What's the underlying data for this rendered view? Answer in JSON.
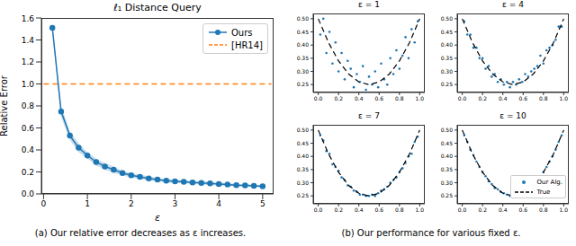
{
  "chart_data": [
    {
      "type": "line",
      "title": "ℓ₁ Distance Query",
      "xlabel": "ε",
      "ylabel": "Relative Error",
      "caption": "(a) Our relative error decreases as ε increases.",
      "x": [
        0.2,
        0.4,
        0.6,
        0.8,
        1.0,
        1.2,
        1.4,
        1.6,
        1.8,
        2.0,
        2.2,
        2.4,
        2.6,
        2.8,
        3.0,
        3.2,
        3.4,
        3.6,
        3.8,
        4.0,
        4.2,
        4.4,
        4.6,
        4.8,
        5.0
      ],
      "series": [
        {
          "name": "Ours",
          "color": "#1f77b4",
          "marker": "circle",
          "line_style": "solid",
          "values": [
            1.51,
            0.75,
            0.53,
            0.42,
            0.35,
            0.29,
            0.25,
            0.22,
            0.19,
            0.17,
            0.155,
            0.14,
            0.13,
            0.12,
            0.115,
            0.11,
            0.105,
            0.1,
            0.095,
            0.09,
            0.085,
            0.08,
            0.078,
            0.074,
            0.07
          ],
          "lower": [
            1.49,
            0.7,
            0.49,
            0.38,
            0.32,
            0.26,
            0.22,
            0.19,
            0.17,
            0.15,
            0.135,
            0.12,
            0.115,
            0.105,
            0.1,
            0.095,
            0.09,
            0.085,
            0.08,
            0.077,
            0.072,
            0.068,
            0.066,
            0.063,
            0.06
          ],
          "upper": [
            1.53,
            0.8,
            0.57,
            0.46,
            0.38,
            0.32,
            0.28,
            0.25,
            0.21,
            0.19,
            0.175,
            0.16,
            0.145,
            0.135,
            0.13,
            0.125,
            0.12,
            0.115,
            0.11,
            0.103,
            0.098,
            0.092,
            0.09,
            0.085,
            0.08
          ]
        },
        {
          "name": "[HR14]",
          "color": "#ff7f0e",
          "line_style": "dashed",
          "x": [
            0,
            5.2
          ],
          "values": [
            1,
            1
          ]
        }
      ],
      "xlim": [
        -0.05,
        5.25
      ],
      "xticks": [
        0,
        1,
        2,
        3,
        4,
        5
      ],
      "ylim": [
        0,
        1.6
      ],
      "yticks": [
        {
          "value": 0,
          "label": "0.0"
        },
        0.2,
        0.4,
        0.6,
        0.8,
        {
          "value": 1,
          "label": "1.0"
        },
        1.2,
        1.4,
        1.6
      ],
      "legend": "upper right",
      "grid": false
    },
    {
      "type": "scatter",
      "title": "ε = 1",
      "caption": "(b) Our performance for various fixed ε.",
      "series": [
        {
          "type": "scatter",
          "color": "#1f77b4",
          "marker": "circle",
          "x": [
            0.02,
            0.05,
            0.08,
            0.11,
            0.14,
            0.17,
            0.2,
            0.23,
            0.26,
            0.29,
            0.32,
            0.35,
            0.38,
            0.41,
            0.44,
            0.47,
            0.5,
            0.53,
            0.56,
            0.59,
            0.62,
            0.65,
            0.68,
            0.71,
            0.74,
            0.77,
            0.8,
            0.83,
            0.86,
            0.89,
            0.92,
            0.95,
            0.98
          ],
          "values": [
            0.44,
            0.5,
            0.37,
            0.45,
            0.33,
            0.41,
            0.3,
            0.37,
            0.27,
            0.34,
            0.31,
            0.24,
            0.29,
            0.26,
            0.32,
            0.23,
            0.28,
            0.25,
            0.3,
            0.24,
            0.33,
            0.27,
            0.25,
            0.35,
            0.29,
            0.38,
            0.31,
            0.36,
            0.43,
            0.35,
            0.46,
            0.41,
            0.49
          ]
        },
        {
          "type": "line",
          "color": "#000000",
          "line_style": "dashed",
          "x": [
            0,
            0.1,
            0.2,
            0.3,
            0.4,
            0.5,
            0.6,
            0.7,
            0.8,
            0.9,
            1.0
          ],
          "values": [
            0.5,
            0.41,
            0.34,
            0.29,
            0.26,
            0.25,
            0.26,
            0.29,
            0.34,
            0.41,
            0.5
          ]
        }
      ],
      "xlim": [
        -0.05,
        1.05
      ],
      "xticks": [
        {
          "value": 0,
          "label": "0.0"
        },
        0.2,
        0.4,
        0.6,
        0.8,
        {
          "value": 1,
          "label": "1.0"
        }
      ],
      "ylim": [
        0.22,
        0.52
      ],
      "yticks": [
        0.25,
        {
          "value": 0.3,
          "label": "0.30"
        },
        0.35,
        {
          "value": 0.4,
          "label": "0.40"
        },
        0.45,
        {
          "value": 0.5,
          "label": "0.50"
        }
      ]
    },
    {
      "type": "scatter",
      "title": "ε = 4",
      "series": [
        {
          "type": "scatter",
          "color": "#1f77b4",
          "marker": "circle",
          "x": [
            0.02,
            0.05,
            0.08,
            0.11,
            0.14,
            0.17,
            0.2,
            0.23,
            0.26,
            0.29,
            0.32,
            0.35,
            0.38,
            0.41,
            0.44,
            0.47,
            0.5,
            0.53,
            0.56,
            0.59,
            0.62,
            0.65,
            0.68,
            0.71,
            0.74,
            0.77,
            0.8,
            0.83,
            0.86,
            0.89,
            0.92,
            0.95,
            0.98
          ],
          "values": [
            0.49,
            0.44,
            0.44,
            0.39,
            0.39,
            0.35,
            0.35,
            0.31,
            0.32,
            0.28,
            0.29,
            0.26,
            0.27,
            0.25,
            0.26,
            0.24,
            0.26,
            0.25,
            0.27,
            0.26,
            0.29,
            0.28,
            0.3,
            0.31,
            0.32,
            0.36,
            0.33,
            0.38,
            0.39,
            0.4,
            0.42,
            0.47,
            0.47
          ]
        },
        {
          "type": "line",
          "color": "#000000",
          "line_style": "dashed",
          "x": [
            0,
            0.1,
            0.2,
            0.3,
            0.4,
            0.5,
            0.6,
            0.7,
            0.8,
            0.9,
            1.0
          ],
          "values": [
            0.5,
            0.41,
            0.34,
            0.29,
            0.26,
            0.25,
            0.26,
            0.29,
            0.34,
            0.41,
            0.5
          ]
        }
      ],
      "xlim": [
        -0.05,
        1.05
      ],
      "xticks": [
        {
          "value": 0,
          "label": "0.0"
        },
        0.2,
        0.4,
        0.6,
        0.8,
        {
          "value": 1,
          "label": "1.0"
        }
      ],
      "ylim": [
        0.22,
        0.52
      ],
      "yticks": [
        0.25,
        {
          "value": 0.3,
          "label": "0.30"
        },
        0.35,
        {
          "value": 0.4,
          "label": "0.40"
        },
        0.45,
        {
          "value": 0.5,
          "label": "0.50"
        }
      ]
    },
    {
      "type": "scatter",
      "title": "ε = 7",
      "series": [
        {
          "type": "scatter",
          "color": "#1f77b4",
          "marker": "circle",
          "x": [
            0.02,
            0.05,
            0.08,
            0.11,
            0.14,
            0.17,
            0.2,
            0.23,
            0.26,
            0.29,
            0.32,
            0.35,
            0.38,
            0.41,
            0.44,
            0.47,
            0.5,
            0.53,
            0.56,
            0.59,
            0.62,
            0.65,
            0.68,
            0.71,
            0.74,
            0.77,
            0.8,
            0.83,
            0.86,
            0.89,
            0.92,
            0.95,
            0.98
          ],
          "values": [
            0.48,
            0.46,
            0.42,
            0.41,
            0.37,
            0.36,
            0.345,
            0.32,
            0.31,
            0.29,
            0.285,
            0.27,
            0.265,
            0.255,
            0.255,
            0.25,
            0.25,
            0.255,
            0.25,
            0.26,
            0.27,
            0.275,
            0.285,
            0.3,
            0.31,
            0.32,
            0.34,
            0.355,
            0.375,
            0.4,
            0.41,
            0.455,
            0.475
          ]
        },
        {
          "type": "line",
          "color": "#000000",
          "line_style": "dashed",
          "x": [
            0,
            0.1,
            0.2,
            0.3,
            0.4,
            0.5,
            0.6,
            0.7,
            0.8,
            0.9,
            1.0
          ],
          "values": [
            0.5,
            0.41,
            0.34,
            0.29,
            0.26,
            0.25,
            0.26,
            0.29,
            0.34,
            0.41,
            0.5
          ]
        }
      ],
      "xlim": [
        -0.05,
        1.05
      ],
      "xticks": [
        {
          "value": 0,
          "label": "0.0"
        },
        0.2,
        0.4,
        0.6,
        0.8,
        {
          "value": 1,
          "label": "1.0"
        }
      ],
      "ylim": [
        0.22,
        0.52
      ],
      "yticks": [
        0.25,
        {
          "value": 0.3,
          "label": "0.30"
        },
        0.35,
        {
          "value": 0.4,
          "label": "0.40"
        },
        0.45,
        {
          "value": 0.5,
          "label": "0.50"
        }
      ]
    },
    {
      "type": "scatter",
      "title": "ε = 10",
      "legend": "lower right",
      "series": [
        {
          "name": "Our Alg.",
          "type": "scatter",
          "color": "#1f77b4",
          "marker": "circle",
          "x": [
            0.02,
            0.05,
            0.08,
            0.11,
            0.14,
            0.17,
            0.2,
            0.23,
            0.26,
            0.29,
            0.32,
            0.35,
            0.38,
            0.41,
            0.44,
            0.47,
            0.5,
            0.53,
            0.56,
            0.59,
            0.62,
            0.65,
            0.68,
            0.71,
            0.74,
            0.77,
            0.8,
            0.83,
            0.86,
            0.89,
            0.92,
            0.95,
            0.98
          ],
          "values": [
            0.48,
            0.455,
            0.425,
            0.405,
            0.38,
            0.36,
            0.34,
            0.325,
            0.305,
            0.295,
            0.28,
            0.275,
            0.265,
            0.26,
            0.255,
            0.25,
            0.25,
            0.25,
            0.255,
            0.26,
            0.265,
            0.27,
            0.285,
            0.295,
            0.31,
            0.325,
            0.34,
            0.36,
            0.38,
            0.4,
            0.425,
            0.455,
            0.48
          ]
        },
        {
          "name": "True",
          "type": "line",
          "color": "#000000",
          "line_style": "dashed",
          "x": [
            0,
            0.1,
            0.2,
            0.3,
            0.4,
            0.5,
            0.6,
            0.7,
            0.8,
            0.9,
            1.0
          ],
          "values": [
            0.5,
            0.41,
            0.34,
            0.29,
            0.26,
            0.25,
            0.26,
            0.29,
            0.34,
            0.41,
            0.5
          ]
        }
      ],
      "xlim": [
        -0.05,
        1.05
      ],
      "xticks": [
        {
          "value": 0,
          "label": "0.0"
        },
        0.2,
        0.4,
        0.6,
        0.8,
        {
          "value": 1,
          "label": "1.0"
        }
      ],
      "ylim": [
        0.22,
        0.52
      ],
      "yticks": [
        0.25,
        {
          "value": 0.3,
          "label": "0.30"
        },
        0.35,
        {
          "value": 0.4,
          "label": "0.40"
        },
        0.45,
        {
          "value": 0.5,
          "label": "0.50"
        }
      ]
    }
  ]
}
